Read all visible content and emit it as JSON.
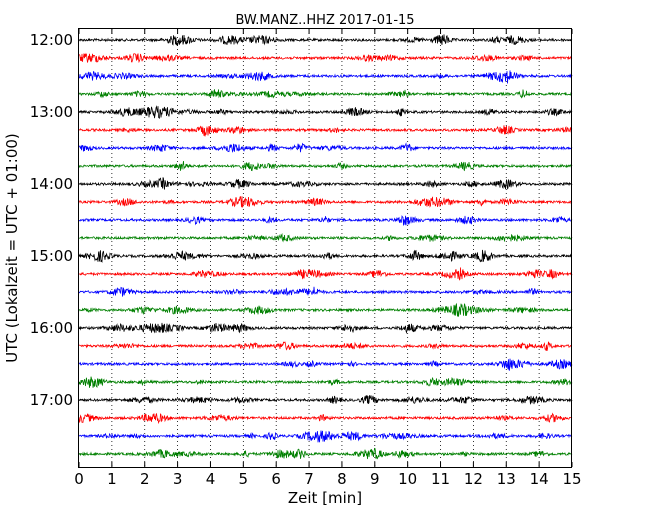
{
  "chart_data": {
    "type": "line",
    "title": "BW.MANZ..HHZ 2017-01-15",
    "xlabel": "Zeit  [min]",
    "ylabel": "UTC (Lokalzeit = UTC + 01:00)",
    "xlim": [
      0,
      15
    ],
    "x_ticks": [
      "0",
      "1",
      "2",
      "3",
      "4",
      "5",
      "6",
      "7",
      "8",
      "9",
      "10",
      "11",
      "12",
      "13",
      "14",
      "15"
    ],
    "y_ticks": [
      "12:00",
      "13:00",
      "14:00",
      "15:00",
      "16:00",
      "17:00"
    ],
    "grid": "vertical dotted lines at each minute",
    "trace_colors": [
      "#000000",
      "#ff0000",
      "#0000ff",
      "#008000"
    ],
    "trace_start_times": [
      "12:00",
      "12:15",
      "12:30",
      "12:45",
      "13:00",
      "13:15",
      "13:30",
      "13:45",
      "14:00",
      "14:15",
      "14:30",
      "14:45",
      "15:00",
      "15:15",
      "15:30",
      "15:45",
      "16:00",
      "16:15",
      "16:30",
      "16:45",
      "17:00",
      "17:15",
      "17:30",
      "17:45"
    ]
  }
}
